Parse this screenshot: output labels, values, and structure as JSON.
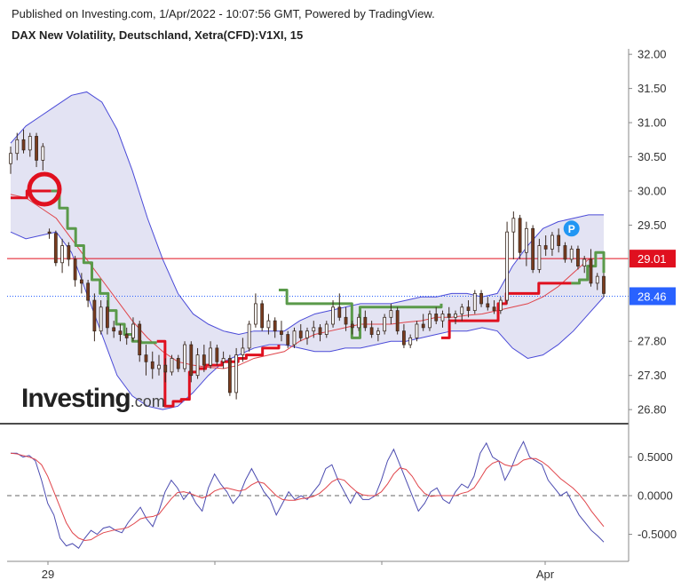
{
  "header": {
    "published": "Published on Investing.com, 1/Apr/2022 - 10:07:56 GMT, Powered by TradingView.",
    "title": "DAX New Volatility, Deutschland, Xetra(CFD):V1XI, 15"
  },
  "watermark": {
    "brand": "Investing",
    "suffix": ".com"
  },
  "colors": {
    "up_candle": "#ffffff",
    "down_candle": "#7a3b1e",
    "bollinger_fill": "#e3e3f3",
    "bollinger_line": "#4b4bd8",
    "sma_line": "#e0444a",
    "trail_green": "#5a9a4a",
    "trail_red": "#e0101f",
    "last_price_bg": "#2962ff",
    "level_bg": "#e0101f",
    "osc_line": "#4b4bb0",
    "signal_line": "#e0444a"
  },
  "chart_data": [
    {
      "type": "candlestick",
      "title": "DAX New Volatility, Deutschland, Xetra(CFD):V1XI, 15",
      "x_labels": [
        "29",
        "Apr"
      ],
      "y_ticks": [
        "32.00",
        "31.50",
        "31.00",
        "30.50",
        "30.00",
        "29.50",
        "29.01",
        "28.46",
        "27.80",
        "27.30",
        "26.80"
      ],
      "ylim": [
        26.62,
        32.08
      ],
      "horizontal_level": 29.01,
      "last_price": 28.46,
      "marker": "P",
      "ohlc": [
        [
          30.4,
          30.65,
          30.25,
          30.55
        ],
        [
          30.55,
          30.85,
          30.45,
          30.75
        ],
        [
          30.75,
          30.9,
          30.55,
          30.6
        ],
        [
          30.6,
          30.85,
          30.5,
          30.8
        ],
        [
          30.8,
          30.85,
          30.35,
          30.45
        ],
        [
          30.45,
          30.7,
          30.3,
          30.65
        ],
        [
          29.4,
          29.45,
          29.3,
          29.38
        ],
        [
          29.38,
          29.42,
          28.9,
          28.95
        ],
        [
          28.95,
          29.3,
          28.8,
          29.2
        ],
        [
          29.2,
          29.25,
          28.9,
          29.0
        ],
        [
          29.0,
          29.05,
          28.6,
          28.7
        ],
        [
          28.7,
          28.8,
          28.5,
          28.65
        ],
        [
          28.65,
          28.7,
          28.3,
          28.4
        ],
        [
          28.4,
          28.5,
          27.8,
          27.95
        ],
        [
          27.95,
          28.4,
          27.9,
          28.3
        ],
        [
          28.3,
          28.4,
          27.9,
          28.0
        ],
        [
          28.0,
          28.1,
          27.85,
          27.95
        ],
        [
          27.95,
          28.05,
          27.8,
          27.9
        ],
        [
          27.9,
          28.0,
          27.75,
          27.85
        ],
        [
          27.85,
          28.15,
          27.8,
          28.05
        ],
        [
          28.05,
          28.1,
          27.5,
          27.6
        ],
        [
          27.6,
          27.75,
          27.3,
          27.5
        ],
        [
          27.5,
          27.65,
          27.25,
          27.4
        ],
        [
          27.4,
          27.6,
          27.3,
          27.45
        ],
        [
          27.45,
          27.55,
          27.2,
          27.35
        ],
        [
          27.35,
          27.6,
          27.3,
          27.55
        ],
        [
          27.55,
          27.6,
          27.35,
          27.4
        ],
        [
          27.4,
          27.8,
          27.35,
          27.75
        ],
        [
          27.75,
          27.8,
          27.2,
          27.3
        ],
        [
          27.3,
          27.7,
          27.25,
          27.6
        ],
        [
          27.6,
          27.75,
          27.35,
          27.45
        ],
        [
          27.45,
          27.8,
          27.4,
          27.7
        ],
        [
          27.7,
          27.75,
          27.45,
          27.5
        ],
        [
          27.5,
          27.65,
          27.4,
          27.55
        ],
        [
          27.55,
          27.6,
          27.0,
          27.05
        ],
        [
          27.05,
          27.7,
          26.95,
          27.6
        ],
        [
          27.6,
          27.85,
          27.5,
          27.7
        ],
        [
          27.7,
          28.1,
          27.65,
          28.05
        ],
        [
          28.05,
          28.5,
          28.0,
          28.35
        ],
        [
          28.35,
          28.4,
          27.95,
          28.0
        ],
        [
          28.0,
          28.2,
          27.9,
          28.1
        ],
        [
          28.1,
          28.15,
          27.85,
          27.95
        ],
        [
          27.95,
          28.1,
          27.8,
          27.9
        ],
        [
          27.9,
          27.95,
          27.7,
          27.75
        ],
        [
          27.75,
          28.0,
          27.7,
          27.95
        ],
        [
          27.95,
          28.05,
          27.8,
          27.85
        ],
        [
          27.85,
          28.0,
          27.75,
          27.95
        ],
        [
          27.95,
          28.1,
          27.85,
          28.0
        ],
        [
          28.0,
          28.05,
          27.8,
          27.9
        ],
        [
          27.9,
          28.1,
          27.85,
          28.05
        ],
        [
          28.05,
          28.4,
          28.0,
          28.3
        ],
        [
          28.3,
          28.5,
          28.1,
          28.15
        ],
        [
          28.15,
          28.3,
          27.95,
          28.05
        ],
        [
          28.05,
          28.1,
          27.9,
          28.0
        ],
        [
          28.0,
          28.2,
          27.95,
          28.15
        ],
        [
          28.15,
          28.25,
          27.95,
          28.0
        ],
        [
          28.0,
          28.1,
          27.85,
          27.9
        ],
        [
          27.9,
          28.0,
          27.8,
          27.95
        ],
        [
          27.95,
          28.2,
          27.9,
          28.15
        ],
        [
          28.15,
          28.35,
          28.05,
          28.25
        ],
        [
          28.25,
          28.3,
          27.9,
          27.95
        ],
        [
          27.95,
          28.05,
          27.7,
          27.75
        ],
        [
          27.75,
          27.9,
          27.7,
          27.85
        ],
        [
          27.85,
          28.1,
          27.8,
          28.05
        ],
        [
          28.05,
          28.2,
          27.95,
          28.0
        ],
        [
          28.0,
          28.25,
          27.95,
          28.2
        ],
        [
          28.2,
          28.3,
          28.05,
          28.1
        ],
        [
          28.1,
          28.25,
          28.0,
          28.2
        ],
        [
          28.2,
          28.3,
          28.1,
          28.15
        ],
        [
          28.15,
          28.25,
          28.05,
          28.2
        ],
        [
          28.2,
          28.35,
          28.1,
          28.3
        ],
        [
          28.3,
          28.4,
          28.15,
          28.25
        ],
        [
          28.25,
          28.55,
          28.2,
          28.5
        ],
        [
          28.5,
          28.55,
          28.3,
          28.35
        ],
        [
          28.35,
          28.45,
          28.25,
          28.3
        ],
        [
          28.3,
          28.4,
          28.2,
          28.25
        ],
        [
          28.25,
          28.45,
          28.2,
          28.4
        ],
        [
          28.4,
          29.55,
          28.35,
          29.4
        ],
        [
          29.4,
          29.7,
          29.0,
          29.6
        ],
        [
          29.6,
          29.65,
          29.0,
          29.1
        ],
        [
          29.1,
          29.55,
          28.9,
          29.45
        ],
        [
          29.45,
          29.5,
          28.8,
          28.85
        ],
        [
          28.85,
          29.3,
          28.8,
          29.2
        ],
        [
          29.2,
          29.35,
          29.05,
          29.15
        ],
        [
          29.15,
          29.4,
          29.05,
          29.35
        ],
        [
          29.35,
          29.45,
          29.1,
          29.2
        ],
        [
          29.2,
          29.25,
          28.95,
          29.0
        ],
        [
          29.0,
          29.2,
          28.95,
          29.15
        ],
        [
          29.15,
          29.2,
          28.85,
          28.9
        ],
        [
          28.9,
          29.05,
          28.8,
          29.0
        ],
        [
          29.0,
          29.15,
          28.6,
          28.65
        ],
        [
          28.65,
          28.8,
          28.55,
          28.75
        ],
        [
          28.75,
          28.8,
          28.45,
          28.5
        ]
      ],
      "bollinger": {
        "upper": [
          30.7,
          30.95,
          31.1,
          31.25,
          31.4,
          31.45,
          31.3,
          30.9,
          30.3,
          29.6,
          29.0,
          28.5,
          28.2,
          28.05,
          27.95,
          27.9,
          27.95,
          27.95,
          27.95,
          28.1,
          28.2,
          28.25,
          28.3,
          28.35,
          28.35,
          28.35,
          28.4,
          28.45,
          28.45,
          28.5,
          28.5,
          28.45,
          28.5,
          28.9,
          29.2,
          29.45,
          29.55,
          29.6,
          29.65,
          29.65
        ],
        "lower": [
          29.4,
          29.3,
          29.35,
          29.4,
          29.1,
          28.5,
          27.9,
          27.3,
          27.0,
          26.85,
          26.8,
          26.85,
          27.05,
          27.3,
          27.5,
          27.6,
          27.7,
          27.75,
          27.75,
          27.7,
          27.65,
          27.65,
          27.7,
          27.7,
          27.75,
          27.8,
          27.8,
          27.85,
          27.9,
          27.95,
          27.95,
          28.0,
          27.95,
          27.7,
          27.55,
          27.6,
          27.75,
          27.95,
          28.2,
          28.45
        ]
      },
      "sma": [
        29.95,
        29.9,
        29.75,
        29.6,
        29.3,
        29.0,
        28.7,
        28.4,
        28.1,
        27.85,
        27.65,
        27.5,
        27.45,
        27.42,
        27.4,
        27.45,
        27.55,
        27.6,
        27.65,
        27.8,
        27.9,
        27.95,
        28.0,
        28.05,
        28.05,
        28.05,
        28.08,
        28.1,
        28.15,
        28.15,
        28.18,
        28.2,
        28.25,
        28.3,
        28.35,
        28.45,
        28.6,
        28.8,
        29.0,
        29.02
      ],
      "trailing_stop": [
        {
          "color": "red",
          "values": [
            29.9,
            29.9,
            30.0,
            30.0,
            30.0,
            30.0
          ]
        },
        {
          "color": "green",
          "values": [
            30.0,
            29.75,
            29.45,
            29.2,
            28.95,
            28.7,
            28.5,
            28.25,
            28.05,
            27.9,
            27.8,
            27.78,
            27.78,
            27.78
          ]
        },
        {
          "color": "red",
          "values": [
            27.8,
            26.85,
            26.92,
            26.95,
            27.35,
            27.4,
            27.45,
            27.45,
            27.5,
            27.5,
            27.55,
            27.6,
            27.6,
            27.7,
            27.7,
            27.75
          ]
        },
        {
          "color": "green",
          "values": [
            28.55,
            28.35,
            28.35,
            28.35,
            28.35,
            28.35,
            28.35,
            28.35,
            28.35,
            27.85,
            28.3,
            28.3,
            28.3,
            28.3,
            28.3,
            28.3,
            28.3,
            28.3,
            28.3,
            28.3,
            28.35
          ]
        },
        {
          "color": "red",
          "values": [
            27.85,
            28.1,
            28.1,
            28.1,
            28.1,
            28.1,
            28.1,
            28.35,
            28.5,
            28.5,
            28.5,
            28.5,
            28.65,
            28.65,
            28.65,
            28.65,
            28.65
          ]
        },
        {
          "color": "green",
          "values": [
            28.65,
            28.7,
            28.9,
            29.1,
            28.8
          ]
        }
      ]
    },
    {
      "type": "line",
      "y_ticks": [
        "0.5000",
        "0.0000",
        "-0.5000"
      ],
      "ylim": [
        -0.85,
        0.92
      ],
      "zero_line": 0,
      "series": [
        {
          "values": [
            0.55,
            0.55,
            0.5,
            0.52,
            0.45,
            0.2,
            -0.1,
            -0.25,
            -0.55,
            -0.65,
            -0.62,
            -0.68,
            -0.55,
            -0.45,
            -0.5,
            -0.42,
            -0.4,
            -0.45,
            -0.48,
            -0.35,
            -0.25,
            -0.15,
            -0.3,
            -0.4,
            -0.2,
            0.05,
            0.2,
            0.1,
            -0.05,
            0.05,
            -0.1,
            -0.2,
            0.1,
            0.28,
            0.15,
            0.05,
            -0.1,
            0.0,
            0.2,
            0.35,
            0.2,
            0.05,
            -0.05,
            -0.25,
            -0.1,
            0.05,
            -0.05,
            0.0,
            -0.05,
            0.05,
            0.15,
            0.35,
            0.4,
            0.2,
            0.05,
            -0.1,
            0.05,
            -0.05,
            -0.05,
            0.0,
            0.2,
            0.45,
            0.6,
            0.4,
            0.2,
            0.0,
            -0.2,
            -0.1,
            0.05,
            0.1,
            -0.05,
            -0.1,
            0.05,
            0.15,
            0.1,
            0.25,
            0.55,
            0.68,
            0.5,
            0.45,
            0.2,
            0.35,
            0.55,
            0.7,
            0.5,
            0.45,
            0.4,
            0.2,
            0.1,
            0.0,
            0.05,
            -0.1,
            -0.25,
            -0.35,
            -0.45,
            -0.52,
            -0.6
          ]
        },
        {
          "values": [
            0.55,
            0.54,
            0.52,
            0.5,
            0.47,
            0.4,
            0.25,
            0.05,
            -0.15,
            -0.35,
            -0.48,
            -0.55,
            -0.58,
            -0.57,
            -0.52,
            -0.48,
            -0.46,
            -0.44,
            -0.43,
            -0.41,
            -0.36,
            -0.3,
            -0.28,
            -0.27,
            -0.24,
            -0.14,
            -0.04,
            0.04,
            0.05,
            0.03,
            0.0,
            -0.03,
            0.0,
            0.06,
            0.09,
            0.1,
            0.08,
            0.06,
            0.08,
            0.14,
            0.18,
            0.16,
            0.08,
            0.0,
            -0.05,
            -0.06,
            -0.06,
            -0.04,
            -0.03,
            -0.01,
            0.03,
            0.1,
            0.18,
            0.22,
            0.2,
            0.12,
            0.05,
            0.01,
            0.0,
            0.0,
            0.05,
            0.15,
            0.28,
            0.36,
            0.34,
            0.25,
            0.12,
            0.03,
            -0.01,
            0.0,
            0.0,
            0.0,
            0.0,
            0.03,
            0.05,
            0.1,
            0.22,
            0.35,
            0.42,
            0.45,
            0.4,
            0.38,
            0.4,
            0.46,
            0.48,
            0.48,
            0.44,
            0.38,
            0.3,
            0.22,
            0.16,
            0.1,
            0.02,
            -0.08,
            -0.2,
            -0.3,
            -0.4
          ]
        }
      ]
    }
  ]
}
